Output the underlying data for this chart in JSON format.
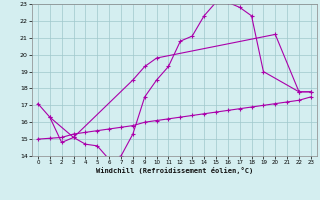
{
  "line1_x": [
    0,
    1,
    2,
    3,
    4,
    5,
    6,
    7,
    8,
    9,
    10,
    11,
    12,
    13,
    14,
    15,
    16,
    17,
    18,
    19,
    22,
    23
  ],
  "line1_y": [
    17.1,
    16.3,
    14.8,
    15.1,
    14.7,
    14.6,
    13.8,
    14.0,
    15.3,
    17.5,
    18.5,
    19.3,
    20.8,
    21.1,
    22.3,
    23.1,
    23.1,
    22.8,
    22.3,
    19.0,
    17.8,
    17.8
  ],
  "line2_x": [
    1,
    3,
    8,
    9,
    10,
    20,
    22,
    23
  ],
  "line2_y": [
    16.3,
    15.1,
    18.5,
    19.3,
    19.8,
    21.2,
    17.8,
    17.8
  ],
  "line3_x": [
    0,
    1,
    2,
    3,
    4,
    5,
    6,
    7,
    8,
    9,
    10,
    11,
    12,
    13,
    14,
    15,
    16,
    17,
    18,
    19,
    20,
    21,
    22,
    23
  ],
  "line3_y": [
    15.0,
    15.05,
    15.1,
    15.3,
    15.4,
    15.5,
    15.6,
    15.7,
    15.8,
    16.0,
    16.1,
    16.2,
    16.3,
    16.4,
    16.5,
    16.6,
    16.7,
    16.8,
    16.9,
    17.0,
    17.1,
    17.2,
    17.3,
    17.5
  ],
  "color": "#aa00aa",
  "bg_color": "#d4eef0",
  "grid_color": "#a0c8cc",
  "xlabel": "Windchill (Refroidissement éolien,°C)",
  "xlim": [
    -0.5,
    23.5
  ],
  "ylim": [
    14,
    23
  ],
  "yticks": [
    14,
    15,
    16,
    17,
    18,
    19,
    20,
    21,
    22,
    23
  ],
  "xticks": [
    0,
    1,
    2,
    3,
    4,
    5,
    6,
    7,
    8,
    9,
    10,
    11,
    12,
    13,
    14,
    15,
    16,
    17,
    18,
    19,
    20,
    21,
    22,
    23
  ],
  "marker": "+",
  "ms": 3,
  "lw": 0.8
}
